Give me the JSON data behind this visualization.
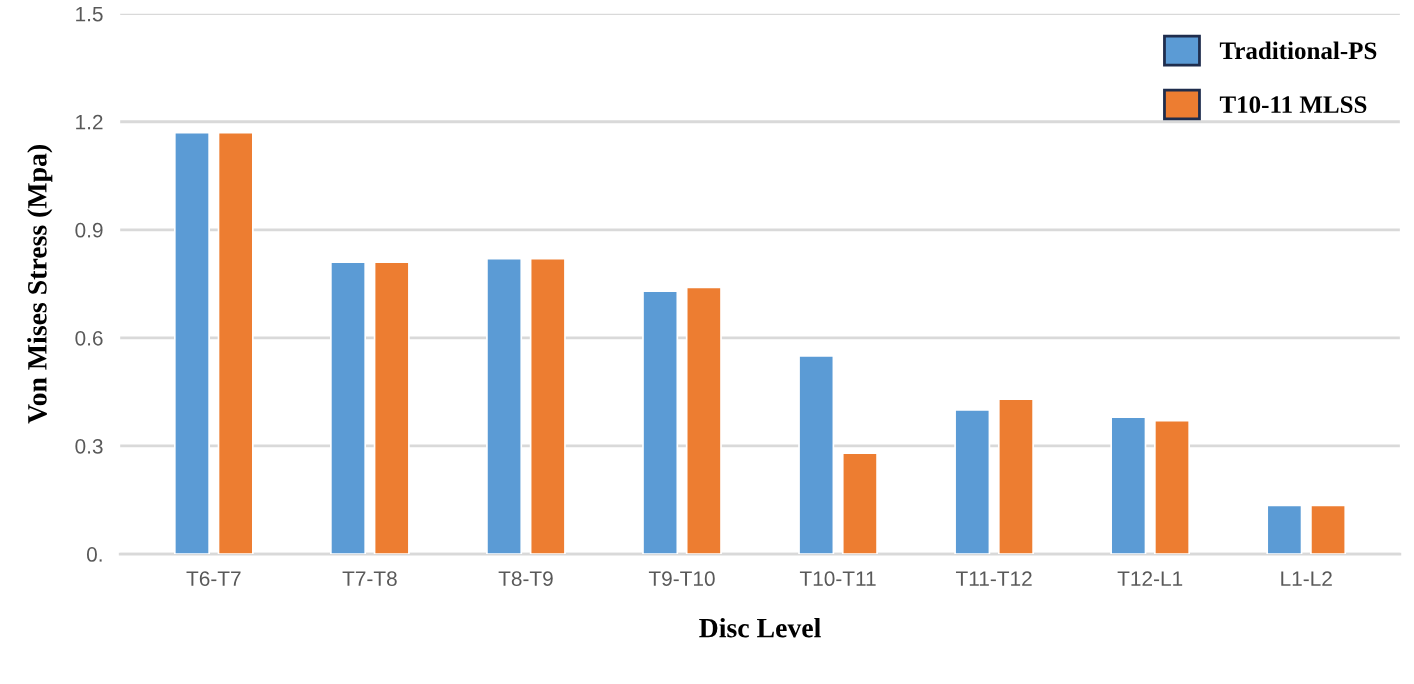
{
  "chart_data": {
    "type": "bar",
    "xlabel": "Disc Level",
    "ylabel": "Von Mises Stress (Mpa)",
    "categories": [
      "T6-T7",
      "T7-T8",
      "T8-T9",
      "T9-T10",
      "T10-T11",
      "T11-T12",
      "T12-L1",
      "L1-L2"
    ],
    "series": [
      {
        "name": "Traditional-PS",
        "color": "#5b9bd5",
        "values": [
          1.17,
          0.81,
          0.82,
          0.73,
          0.55,
          0.4,
          0.38,
          0.135
        ]
      },
      {
        "name": "T10-11 MLSS",
        "color": "#ed7d31",
        "values": [
          1.17,
          0.81,
          0.82,
          0.74,
          0.28,
          0.43,
          0.37,
          0.135
        ]
      }
    ],
    "ylim": [
      0,
      1.5
    ],
    "yticks": [
      {
        "value": 0,
        "label": "0."
      },
      0.3,
      0.6,
      0.9,
      1.2,
      1.5
    ],
    "grid": "y",
    "legend": "top right"
  }
}
